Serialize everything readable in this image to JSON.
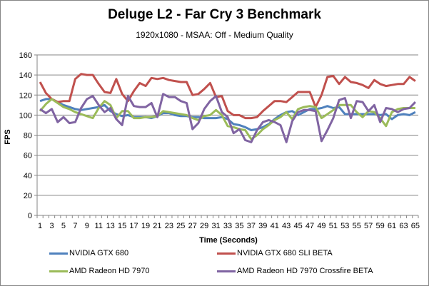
{
  "chart_data": {
    "type": "line",
    "title": "Deluge L2 - Far Cry 3 Benchmark",
    "subtitle": "1920x1080  - MSAA: Off - Medium Quality",
    "xlabel": "Time (Seconds)",
    "ylabel": "FPS",
    "ylim": [
      0,
      160
    ],
    "yticks": [
      0,
      20,
      40,
      60,
      80,
      100,
      120,
      140,
      160
    ],
    "x": [
      1,
      2,
      3,
      4,
      5,
      6,
      7,
      8,
      9,
      10,
      11,
      12,
      13,
      14,
      15,
      16,
      17,
      18,
      19,
      20,
      21,
      22,
      23,
      24,
      25,
      26,
      27,
      28,
      29,
      30,
      31,
      32,
      33,
      34,
      35,
      36,
      37,
      38,
      39,
      40,
      41,
      42,
      43,
      44,
      45,
      46,
      47,
      48,
      49,
      50,
      51,
      52,
      53,
      54,
      55,
      56,
      57,
      58,
      59,
      60,
      61,
      62,
      63,
      64,
      65
    ],
    "xtick_labels": [
      "1",
      "3",
      "5",
      "7",
      "9",
      "11",
      "13",
      "15",
      "17",
      "19",
      "21",
      "23",
      "25",
      "27",
      "29",
      "31",
      "33",
      "35",
      "37",
      "39",
      "41",
      "43",
      "45",
      "47",
      "49",
      "51",
      "53",
      "55",
      "57",
      "59",
      "61",
      "63",
      "65"
    ],
    "grid": true,
    "legend_position": "bottom",
    "series": [
      {
        "name": "NVIDIA GTX 680",
        "color": "#4F81BD",
        "values": [
          114,
          116,
          116,
          113,
          110,
          108,
          106,
          105,
          106,
          107,
          108,
          110,
          104,
          101,
          99,
          100,
          98,
          98,
          98,
          97,
          99,
          102,
          102,
          100,
          99,
          99,
          98,
          98,
          97,
          97,
          97,
          98,
          96,
          91,
          90,
          88,
          85,
          86,
          88,
          91,
          96,
          100,
          103,
          104,
          100,
          103,
          106,
          106,
          107,
          109,
          107,
          108,
          101,
          101,
          101,
          101,
          101,
          101,
          100,
          101,
          96,
          100,
          101,
          100,
          103
        ]
      },
      {
        "name": "NVIDIA GTX 680 SLI BETA",
        "color": "#C0504D",
        "values": [
          133,
          122,
          116,
          113,
          114,
          114,
          136,
          141,
          140,
          140,
          131,
          123,
          122,
          136,
          121,
          114,
          124,
          132,
          129,
          137,
          136,
          137,
          135,
          134,
          133,
          133,
          120,
          121,
          126,
          132,
          118,
          119,
          104,
          100,
          100,
          97,
          97,
          98,
          104,
          109,
          114,
          114,
          113,
          118,
          123,
          123,
          123,
          108,
          120,
          138,
          139,
          131,
          138,
          133,
          132,
          130,
          127,
          135,
          131,
          129,
          130,
          131,
          131,
          138,
          134
        ]
      },
      {
        "name": "AMD Radeon HD 7970",
        "color": "#9BBB59",
        "values": [
          104,
          111,
          116,
          112,
          108,
          106,
          103,
          101,
          99,
          97,
          107,
          114,
          110,
          97,
          104,
          104,
          97,
          97,
          98,
          98,
          99,
          104,
          103,
          102,
          101,
          100,
          97,
          95,
          99,
          100,
          105,
          100,
          89,
          88,
          86,
          85,
          76,
          80,
          86,
          90,
          95,
          98,
          103,
          96,
          106,
          108,
          109,
          108,
          97,
          101,
          105,
          110,
          110,
          110,
          103,
          98,
          104,
          103,
          97,
          89,
          103,
          106,
          107,
          107,
          107
        ]
      },
      {
        "name": "AMD Radeon HD 7970 Crossfire BETA",
        "color": "#8064A2",
        "values": [
          106,
          102,
          106,
          93,
          98,
          92,
          93,
          107,
          116,
          119,
          110,
          103,
          107,
          96,
          90,
          119,
          109,
          108,
          108,
          112,
          98,
          121,
          118,
          118,
          114,
          112,
          86,
          92,
          106,
          114,
          119,
          103,
          98,
          82,
          86,
          75,
          73,
          85,
          93,
          95,
          93,
          90,
          73,
          94,
          103,
          105,
          105,
          104,
          74,
          85,
          97,
          115,
          117,
          97,
          114,
          113,
          104,
          110,
          93,
          107,
          106,
          103,
          106,
          107,
          113
        ]
      }
    ]
  }
}
